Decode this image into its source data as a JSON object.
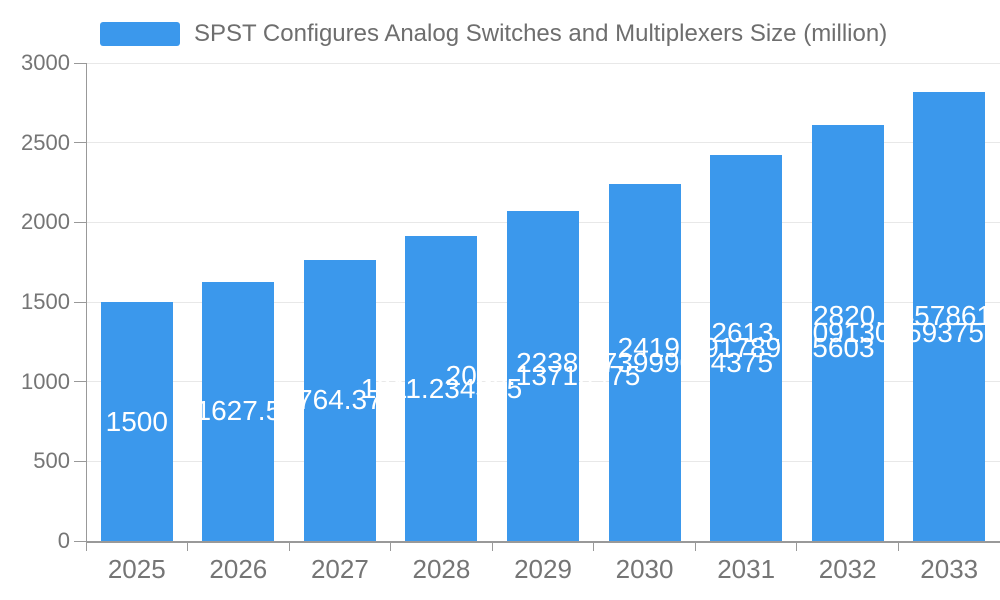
{
  "legend": {
    "label": "SPST Configures Analog Switches and Multiplexers Size (million)"
  },
  "chart_data": {
    "type": "bar",
    "title": "SPST Configures Analog Switches and Multiplexers Size (million)",
    "categories": [
      "2025",
      "2026",
      "2027",
      "2028",
      "2029",
      "2030",
      "2031",
      "2032",
      "2033"
    ],
    "values": [
      1500,
      1627.5,
      1764.375,
      1911.234375,
      2069.13710475,
      2238.473999024375,
      2419.691789125603,
      2613.4609130859376,
      2820.5457861328123
    ],
    "value_labels": [
      "1500",
      "1627.5",
      "1764.375",
      "1911.234375",
      "2069.13710475",
      "2238.473999024375",
      "2419.691789125603",
      "2613.4609130859375",
      "2820.5457861328125"
    ],
    "xlabel": "",
    "ylabel": "",
    "ylim": [
      0,
      3000
    ],
    "yticks": [
      0,
      500,
      1000,
      1500,
      2000,
      2500,
      3000
    ],
    "grid": true,
    "legend_position": "top",
    "colors": {
      "bar": "#3B98EC",
      "value_label": "#FFFFFF",
      "axis_label": "#757575",
      "title": "#6E6E6E",
      "gridline": "#E8E8E8",
      "axis_line": "#999999"
    }
  }
}
